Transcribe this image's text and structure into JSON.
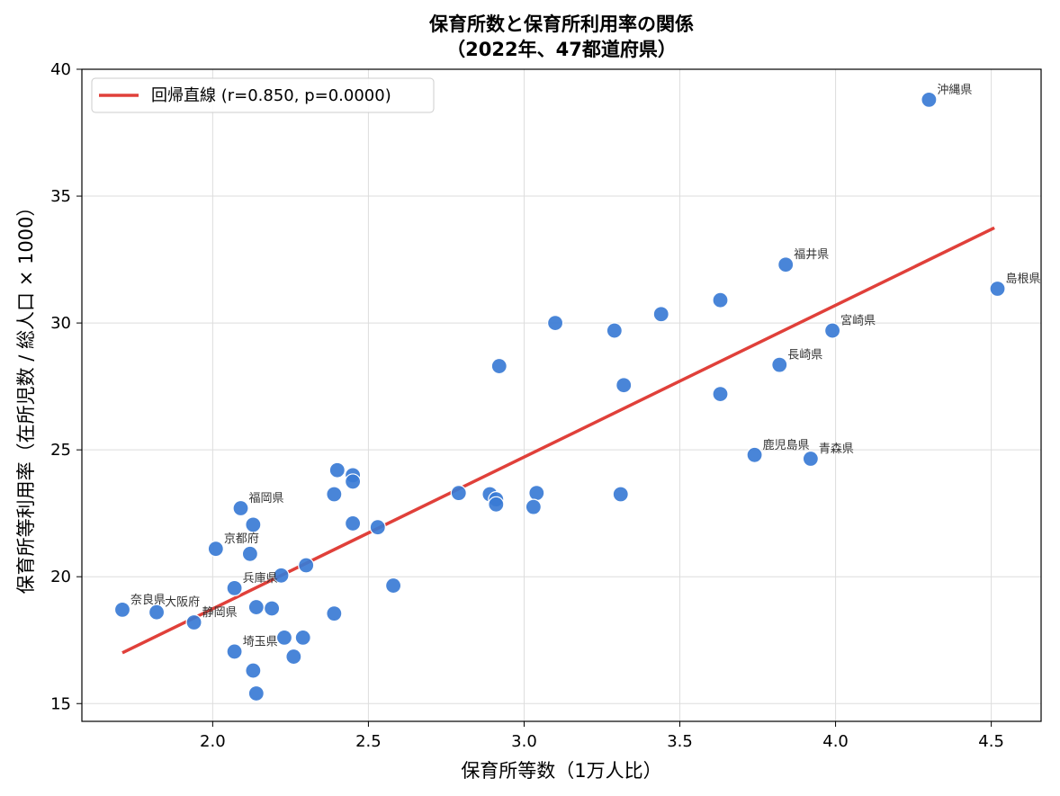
{
  "chart_data": {
    "type": "scatter",
    "title_line1": "保育所数と保育所利用率の関係",
    "title_line2": "（2022年、47都道府県）",
    "xlabel": "保育所等数（1万人比）",
    "ylabel": "保育所等利用率（在所児数 / 総人口 × 1000）",
    "xlim": [
      1.58,
      4.66
    ],
    "ylim": [
      14.3,
      40.0
    ],
    "x_ticks": [
      2.0,
      2.5,
      3.0,
      3.5,
      4.0,
      4.5
    ],
    "x_tick_labels": [
      "2.0",
      "2.5",
      "3.0",
      "3.5",
      "4.0",
      "4.5"
    ],
    "y_ticks": [
      15,
      20,
      25,
      30,
      35,
      40
    ],
    "y_tick_labels": [
      "15",
      "20",
      "25",
      "30",
      "35",
      "40"
    ],
    "grid": true,
    "legend_position": "top-left",
    "legend": "回帰直線 (r=0.850, p=0.0000)",
    "colors": {
      "points": "#3a7bd5",
      "regression": "#e0403a",
      "point_edge": "#ffffff"
    },
    "regression_line": {
      "x": [
        1.71,
        4.51
      ],
      "y": [
        17.0,
        33.75
      ]
    },
    "points": [
      {
        "x": 4.3,
        "y": 38.8,
        "label": "沖縄県"
      },
      {
        "x": 3.84,
        "y": 32.3,
        "label": "福井県"
      },
      {
        "x": 4.52,
        "y": 31.35,
        "label": "島根県"
      },
      {
        "x": 3.99,
        "y": 29.7,
        "label": "宮崎県"
      },
      {
        "x": 3.82,
        "y": 28.35,
        "label": "長崎県"
      },
      {
        "x": 3.74,
        "y": 24.8,
        "label": "鹿児島県"
      },
      {
        "x": 3.92,
        "y": 24.65,
        "label": "青森県"
      },
      {
        "x": 2.09,
        "y": 22.7,
        "label": "福岡県"
      },
      {
        "x": 2.01,
        "y": 21.1,
        "label": "京都府"
      },
      {
        "x": 2.07,
        "y": 19.55,
        "label": "兵庫県"
      },
      {
        "x": 1.71,
        "y": 18.7,
        "label": "奈良県"
      },
      {
        "x": 1.82,
        "y": 18.6,
        "label": "大阪府"
      },
      {
        "x": 1.94,
        "y": 18.2,
        "label": "静岡県"
      },
      {
        "x": 2.07,
        "y": 17.05,
        "label": "埼玉県"
      },
      {
        "x": 3.63,
        "y": 30.9,
        "label": ""
      },
      {
        "x": 3.44,
        "y": 30.35,
        "label": ""
      },
      {
        "x": 3.1,
        "y": 30.0,
        "label": ""
      },
      {
        "x": 3.29,
        "y": 29.7,
        "label": ""
      },
      {
        "x": 2.92,
        "y": 28.3,
        "label": ""
      },
      {
        "x": 3.32,
        "y": 27.55,
        "label": ""
      },
      {
        "x": 3.63,
        "y": 27.2,
        "label": ""
      },
      {
        "x": 2.4,
        "y": 24.2,
        "label": ""
      },
      {
        "x": 2.45,
        "y": 24.0,
        "label": ""
      },
      {
        "x": 2.45,
        "y": 23.75,
        "label": ""
      },
      {
        "x": 2.39,
        "y": 23.25,
        "label": ""
      },
      {
        "x": 2.79,
        "y": 23.3,
        "label": ""
      },
      {
        "x": 2.89,
        "y": 23.25,
        "label": ""
      },
      {
        "x": 3.04,
        "y": 23.3,
        "label": ""
      },
      {
        "x": 3.31,
        "y": 23.25,
        "label": ""
      },
      {
        "x": 2.91,
        "y": 23.05,
        "label": ""
      },
      {
        "x": 2.91,
        "y": 22.85,
        "label": ""
      },
      {
        "x": 3.03,
        "y": 22.75,
        "label": ""
      },
      {
        "x": 2.13,
        "y": 22.05,
        "label": ""
      },
      {
        "x": 2.45,
        "y": 22.1,
        "label": ""
      },
      {
        "x": 2.53,
        "y": 21.95,
        "label": ""
      },
      {
        "x": 2.12,
        "y": 20.9,
        "label": ""
      },
      {
        "x": 2.3,
        "y": 20.45,
        "label": ""
      },
      {
        "x": 2.22,
        "y": 20.05,
        "label": ""
      },
      {
        "x": 2.58,
        "y": 19.65,
        "label": ""
      },
      {
        "x": 2.14,
        "y": 18.8,
        "label": ""
      },
      {
        "x": 2.19,
        "y": 18.75,
        "label": ""
      },
      {
        "x": 2.39,
        "y": 18.55,
        "label": ""
      },
      {
        "x": 2.23,
        "y": 17.6,
        "label": ""
      },
      {
        "x": 2.29,
        "y": 17.6,
        "label": ""
      },
      {
        "x": 2.26,
        "y": 16.85,
        "label": ""
      },
      {
        "x": 2.13,
        "y": 16.3,
        "label": ""
      },
      {
        "x": 2.14,
        "y": 15.4,
        "label": ""
      }
    ]
  }
}
